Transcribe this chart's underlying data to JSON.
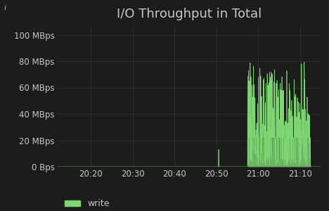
{
  "title": "I/O Throughput in Total",
  "bg_color": "#1c1c1c",
  "plot_bg_color": "#1c1c1c",
  "grid_color": "#333333",
  "text_color": "#c8c8c8",
  "write_color": "#7ed672",
  "legend_label": "write",
  "yticks": [
    0,
    20000000,
    40000000,
    60000000,
    80000000,
    100000000
  ],
  "ytick_labels": [
    "0 Bps",
    "20 MBps",
    "40 MBps",
    "60 MBps",
    "80 MBps",
    "100 MBps"
  ],
  "xticks": [
    10,
    20,
    30,
    40,
    50,
    60
  ],
  "xtick_labels": [
    "20:20",
    "20:30",
    "20:40",
    "20:50",
    "21:00",
    "21:10"
  ],
  "xmin": 2,
  "xmax": 65,
  "ymin": 0,
  "ymax": 108000000,
  "title_fontsize": 13,
  "tick_fontsize": 8.5,
  "legend_fontsize": 9,
  "info_text": "i"
}
